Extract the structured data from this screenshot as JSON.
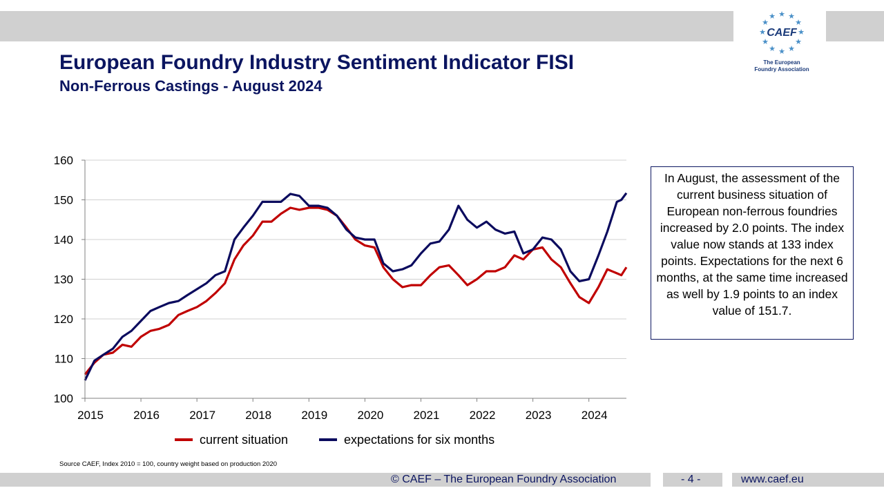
{
  "header": {
    "title": "European Foundry Industry Sentiment Indicator FISI",
    "subtitle": "Non-Ferrous Castings - August 2024"
  },
  "logo": {
    "name": "CAEF",
    "tagline_line1": "The European",
    "tagline_line2": "Foundry Association",
    "color": "#1a3a7a",
    "star_color": "#4a90c8"
  },
  "note": "In August, the assessment of the current business situation of European non-ferrous foundries increased by 2.0 points. The index value now stands at 133 index points. Expectations for the next 6 months, at the same time increased as well by 1.9 points to an index value of 151.7.",
  "source": "Source CAEF, Index 2010 = 100, country weight based on production 2020",
  "footer": {
    "copyright": "© CAEF – The European Foundry Association",
    "page": "- 4 -",
    "website": "www.caef.eu"
  },
  "chart_data": {
    "type": "line",
    "ylim": [
      100,
      160
    ],
    "yticks": [
      "100",
      "110",
      "120",
      "130",
      "140",
      "150",
      "160"
    ],
    "xlim": [
      2015,
      2024.67
    ],
    "xticks": [
      "2015",
      "2016",
      "2017",
      "2018",
      "2019",
      "2020",
      "2021",
      "2022",
      "2023",
      "2024"
    ],
    "grid": true,
    "legend": "bottom",
    "series": [
      {
        "name": "current situation",
        "color": "#c00000",
        "points": [
          [
            2015.0,
            106
          ],
          [
            2015.17,
            109
          ],
          [
            2015.33,
            111
          ],
          [
            2015.5,
            111.5
          ],
          [
            2015.67,
            113.5
          ],
          [
            2015.83,
            113
          ],
          [
            2016.0,
            115.5
          ],
          [
            2016.17,
            117
          ],
          [
            2016.33,
            117.5
          ],
          [
            2016.5,
            118.5
          ],
          [
            2016.67,
            121
          ],
          [
            2016.83,
            122
          ],
          [
            2017.0,
            123
          ],
          [
            2017.17,
            124.5
          ],
          [
            2017.33,
            126.5
          ],
          [
            2017.5,
            129
          ],
          [
            2017.67,
            135
          ],
          [
            2017.83,
            138.5
          ],
          [
            2018.0,
            141
          ],
          [
            2018.17,
            144.5
          ],
          [
            2018.33,
            144.5
          ],
          [
            2018.5,
            146.5
          ],
          [
            2018.67,
            148
          ],
          [
            2018.83,
            147.5
          ],
          [
            2019.0,
            148
          ],
          [
            2019.17,
            148
          ],
          [
            2019.33,
            147.5
          ],
          [
            2019.5,
            146
          ],
          [
            2019.67,
            143
          ],
          [
            2019.83,
            140
          ],
          [
            2020.0,
            138.5
          ],
          [
            2020.17,
            138
          ],
          [
            2020.33,
            133
          ],
          [
            2020.5,
            130
          ],
          [
            2020.67,
            128
          ],
          [
            2020.83,
            128.5
          ],
          [
            2021.0,
            128.5
          ],
          [
            2021.17,
            131
          ],
          [
            2021.33,
            133
          ],
          [
            2021.5,
            133.5
          ],
          [
            2021.67,
            131
          ],
          [
            2021.83,
            128.5
          ],
          [
            2022.0,
            130
          ],
          [
            2022.17,
            132
          ],
          [
            2022.33,
            132
          ],
          [
            2022.5,
            133
          ],
          [
            2022.67,
            136
          ],
          [
            2022.83,
            135
          ],
          [
            2023.0,
            137.5
          ],
          [
            2023.17,
            138
          ],
          [
            2023.33,
            135
          ],
          [
            2023.5,
            133
          ],
          [
            2023.67,
            129
          ],
          [
            2023.83,
            125.5
          ],
          [
            2024.0,
            124
          ],
          [
            2024.17,
            128
          ],
          [
            2024.33,
            132.5
          ],
          [
            2024.5,
            131.5
          ],
          [
            2024.58,
            131
          ],
          [
            2024.67,
            133
          ]
        ]
      },
      {
        "name": "expectations for six months",
        "color": "#0b0b5e",
        "points": [
          [
            2015.0,
            104.5
          ],
          [
            2015.17,
            109.5
          ],
          [
            2015.33,
            111
          ],
          [
            2015.5,
            112.5
          ],
          [
            2015.67,
            115.5
          ],
          [
            2015.83,
            117
          ],
          [
            2016.0,
            119.5
          ],
          [
            2016.17,
            122
          ],
          [
            2016.33,
            123
          ],
          [
            2016.5,
            124
          ],
          [
            2016.67,
            124.5
          ],
          [
            2016.83,
            126
          ],
          [
            2017.0,
            127.5
          ],
          [
            2017.17,
            129
          ],
          [
            2017.33,
            131
          ],
          [
            2017.5,
            132
          ],
          [
            2017.67,
            140
          ],
          [
            2017.83,
            143
          ],
          [
            2018.0,
            146
          ],
          [
            2018.17,
            149.5
          ],
          [
            2018.33,
            149.5
          ],
          [
            2018.5,
            149.5
          ],
          [
            2018.67,
            151.5
          ],
          [
            2018.83,
            151
          ],
          [
            2019.0,
            148.5
          ],
          [
            2019.17,
            148.5
          ],
          [
            2019.33,
            148
          ],
          [
            2019.5,
            146
          ],
          [
            2019.67,
            142.5
          ],
          [
            2019.83,
            140.5
          ],
          [
            2020.0,
            140
          ],
          [
            2020.17,
            140
          ],
          [
            2020.33,
            134
          ],
          [
            2020.5,
            132
          ],
          [
            2020.67,
            132.5
          ],
          [
            2020.83,
            133.5
          ],
          [
            2021.0,
            136.5
          ],
          [
            2021.17,
            139
          ],
          [
            2021.33,
            139.5
          ],
          [
            2021.5,
            142.5
          ],
          [
            2021.67,
            148.5
          ],
          [
            2021.83,
            145
          ],
          [
            2022.0,
            143
          ],
          [
            2022.17,
            144.5
          ],
          [
            2022.33,
            142.5
          ],
          [
            2022.5,
            141.5
          ],
          [
            2022.67,
            142
          ],
          [
            2022.83,
            136.5
          ],
          [
            2023.0,
            137.5
          ],
          [
            2023.17,
            140.5
          ],
          [
            2023.33,
            140
          ],
          [
            2023.5,
            137.5
          ],
          [
            2023.67,
            132
          ],
          [
            2023.83,
            129.5
          ],
          [
            2024.0,
            130
          ],
          [
            2024.17,
            136
          ],
          [
            2024.33,
            142
          ],
          [
            2024.5,
            149.5
          ],
          [
            2024.58,
            150
          ],
          [
            2024.67,
            151.7
          ]
        ]
      }
    ]
  }
}
